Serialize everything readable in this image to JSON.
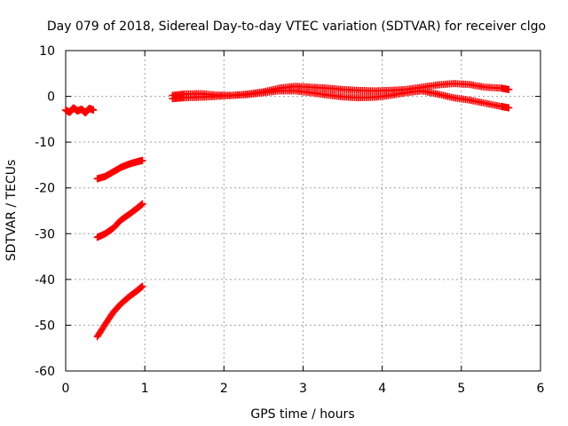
{
  "chart_data": {
    "type": "scatter",
    "title": "Day 079 of 2018, Sidereal Day-to-day VTEC variation (SDTVAR) for receiver clgo",
    "xlabel": "GPS time / hours",
    "ylabel": "SDTVAR / TECUs",
    "xlim": [
      0,
      6
    ],
    "ylim": [
      -60,
      10
    ],
    "x_ticks": [
      0,
      1,
      2,
      3,
      4,
      5,
      6
    ],
    "y_ticks": [
      10,
      0,
      -10,
      -20,
      -30,
      -40,
      -50,
      -60
    ],
    "grid": true,
    "marker": "+",
    "color": "#ff0000",
    "series": [
      {
        "x": [
          0.0,
          0.05,
          0.1,
          0.15,
          0.2,
          0.25,
          0.3,
          0.35
        ],
        "y": [
          -3.0,
          -3.5,
          -2.5,
          -3.2,
          -2.8,
          -3.6,
          -2.6,
          -3.0
        ]
      },
      {
        "x": [
          0.4,
          0.5,
          0.6,
          0.7,
          0.8,
          0.9,
          0.97
        ],
        "y": [
          -18.0,
          -17.5,
          -16.5,
          -15.5,
          -14.8,
          -14.3,
          -14.0
        ]
      },
      {
        "x": [
          0.4,
          0.5,
          0.6,
          0.7,
          0.8,
          0.9,
          0.97
        ],
        "y": [
          -30.8,
          -30.0,
          -28.8,
          -27.0,
          -25.8,
          -24.5,
          -23.5
        ]
      },
      {
        "x": [
          0.4,
          0.5,
          0.6,
          0.7,
          0.8,
          0.9,
          0.97
        ],
        "y": [
          -52.5,
          -49.8,
          -47.2,
          -45.3,
          -43.8,
          -42.5,
          -41.5
        ]
      },
      {
        "x": [
          1.35,
          1.5,
          1.7,
          1.9,
          2.1,
          2.3,
          2.5,
          2.7,
          2.9,
          3.1,
          3.3,
          3.5,
          3.7,
          3.9,
          4.1,
          4.3,
          4.5,
          4.7,
          4.9,
          5.1,
          5.3,
          5.5,
          5.6
        ],
        "y": [
          0.2,
          0.5,
          0.6,
          0.3,
          0.2,
          0.5,
          1.0,
          1.8,
          2.2,
          2.0,
          1.8,
          1.5,
          1.3,
          1.2,
          1.3,
          1.5,
          2.0,
          2.5,
          2.8,
          2.6,
          2.0,
          1.8,
          1.5
        ]
      },
      {
        "x": [
          1.35,
          1.5,
          1.7,
          1.9,
          2.1,
          2.3,
          2.5,
          2.7,
          2.9,
          3.1,
          3.3,
          3.5,
          3.7,
          3.9,
          4.1,
          4.3,
          4.5,
          4.7,
          4.9,
          5.1,
          5.3,
          5.5,
          5.6
        ],
        "y": [
          -0.5,
          -0.3,
          -0.2,
          0.0,
          0.2,
          0.4,
          0.8,
          1.2,
          1.2,
          0.8,
          0.3,
          -0.1,
          -0.3,
          -0.2,
          0.2,
          0.8,
          1.2,
          0.5,
          -0.3,
          -0.8,
          -1.5,
          -2.2,
          -2.5
        ]
      }
    ]
  }
}
